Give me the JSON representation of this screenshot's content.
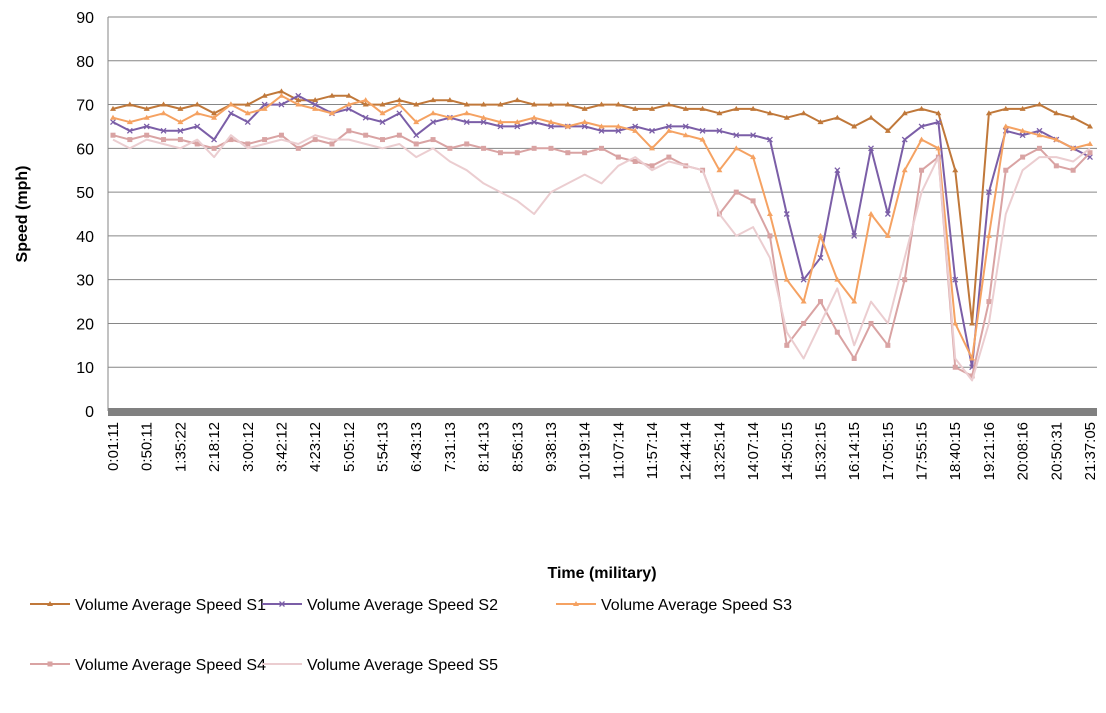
{
  "chart_data": {
    "type": "line",
    "x_label": "Time (military)",
    "y_label": "Speed (mph)",
    "categories": [
      "0:01:11",
      null,
      "0:50:11",
      null,
      "1:35:22",
      null,
      "2:18:12",
      null,
      "3:00:12",
      null,
      "3:42:12",
      null,
      "4:23:12",
      null,
      "5:05:12",
      null,
      "5:54:13",
      null,
      "6:43:13",
      null,
      "7:31:13",
      null,
      "8:14:13",
      null,
      "8:56:13",
      null,
      "9:38:13",
      null,
      "10:19:14",
      null,
      "11:07:14",
      null,
      "11:57:14",
      null,
      "12:44:14",
      null,
      "13:25:14",
      null,
      "14:07:14",
      null,
      "14:50:15",
      null,
      "15:32:15",
      null,
      "16:14:15",
      null,
      "17:05:15",
      null,
      "17:55:15",
      null,
      "18:40:15",
      null,
      "19:21:16",
      null,
      "20:08:16",
      null,
      "20:50:31",
      null,
      "21:37:05"
    ],
    "ylim": [
      0,
      90
    ],
    "yticks": [
      0,
      10,
      20,
      30,
      40,
      50,
      60,
      70,
      80,
      90
    ],
    "grid": true,
    "series": [
      {
        "name": "Volume Average Speed S1",
        "color": "#c0783a",
        "marker": "triangle",
        "values": [
          69,
          70,
          69,
          70,
          69,
          70,
          68,
          70,
          70,
          72,
          73,
          71,
          71,
          72,
          72,
          70,
          70,
          71,
          70,
          71,
          71,
          70,
          70,
          70,
          71,
          70,
          70,
          70,
          69,
          70,
          70,
          69,
          69,
          70,
          69,
          69,
          68,
          69,
          69,
          68,
          67,
          68,
          66,
          67,
          65,
          67,
          64,
          68,
          69,
          68,
          55,
          20,
          68,
          69,
          69,
          70,
          68,
          67,
          65
        ]
      },
      {
        "name": "Volume Average Speed S2",
        "color": "#7b5ea7",
        "marker": "cross",
        "values": [
          66,
          64,
          65,
          64,
          64,
          65,
          62,
          68,
          66,
          70,
          70,
          72,
          70,
          68,
          69,
          67,
          66,
          68,
          63,
          66,
          67,
          66,
          66,
          65,
          65,
          66,
          65,
          65,
          65,
          64,
          64,
          65,
          64,
          65,
          65,
          64,
          64,
          63,
          63,
          62,
          45,
          30,
          35,
          55,
          40,
          60,
          45,
          62,
          65,
          66,
          30,
          10,
          50,
          64,
          63,
          64,
          62,
          60,
          58
        ]
      },
      {
        "name": "Volume Average Speed S3",
        "color": "#f5a262",
        "marker": "triangle",
        "values": [
          67,
          66,
          67,
          68,
          66,
          68,
          67,
          70,
          68,
          69,
          72,
          70,
          69,
          68,
          70,
          71,
          68,
          70,
          66,
          68,
          67,
          68,
          67,
          66,
          66,
          67,
          66,
          65,
          66,
          65,
          65,
          64,
          60,
          64,
          63,
          62,
          55,
          60,
          58,
          45,
          30,
          25,
          40,
          30,
          25,
          45,
          40,
          55,
          62,
          60,
          20,
          12,
          40,
          65,
          64,
          63,
          62,
          60,
          61
        ]
      },
      {
        "name": "Volume Average Speed S4",
        "color": "#d9a3a3",
        "marker": "square",
        "values": [
          63,
          62,
          63,
          62,
          62,
          61,
          60,
          62,
          61,
          62,
          63,
          60,
          62,
          61,
          64,
          63,
          62,
          63,
          61,
          62,
          60,
          61,
          60,
          59,
          59,
          60,
          60,
          59,
          59,
          60,
          58,
          57,
          56,
          58,
          56,
          55,
          45,
          50,
          48,
          40,
          15,
          20,
          25,
          18,
          12,
          20,
          15,
          30,
          55,
          58,
          10,
          8,
          25,
          55,
          58,
          60,
          56,
          55,
          59
        ]
      },
      {
        "name": "Volume Average Speed S5",
        "color": "#ebcdd0",
        "marker": "none",
        "values": [
          62,
          60,
          62,
          61,
          60,
          62,
          58,
          63,
          60,
          61,
          62,
          61,
          63,
          62,
          62,
          61,
          60,
          61,
          58,
          60,
          57,
          55,
          52,
          50,
          48,
          45,
          50,
          52,
          54,
          52,
          56,
          58,
          55,
          57,
          56,
          55,
          45,
          40,
          42,
          35,
          18,
          12,
          20,
          28,
          15,
          25,
          20,
          35,
          50,
          58,
          12,
          7,
          20,
          45,
          55,
          58,
          58,
          57,
          60
        ]
      }
    ]
  }
}
